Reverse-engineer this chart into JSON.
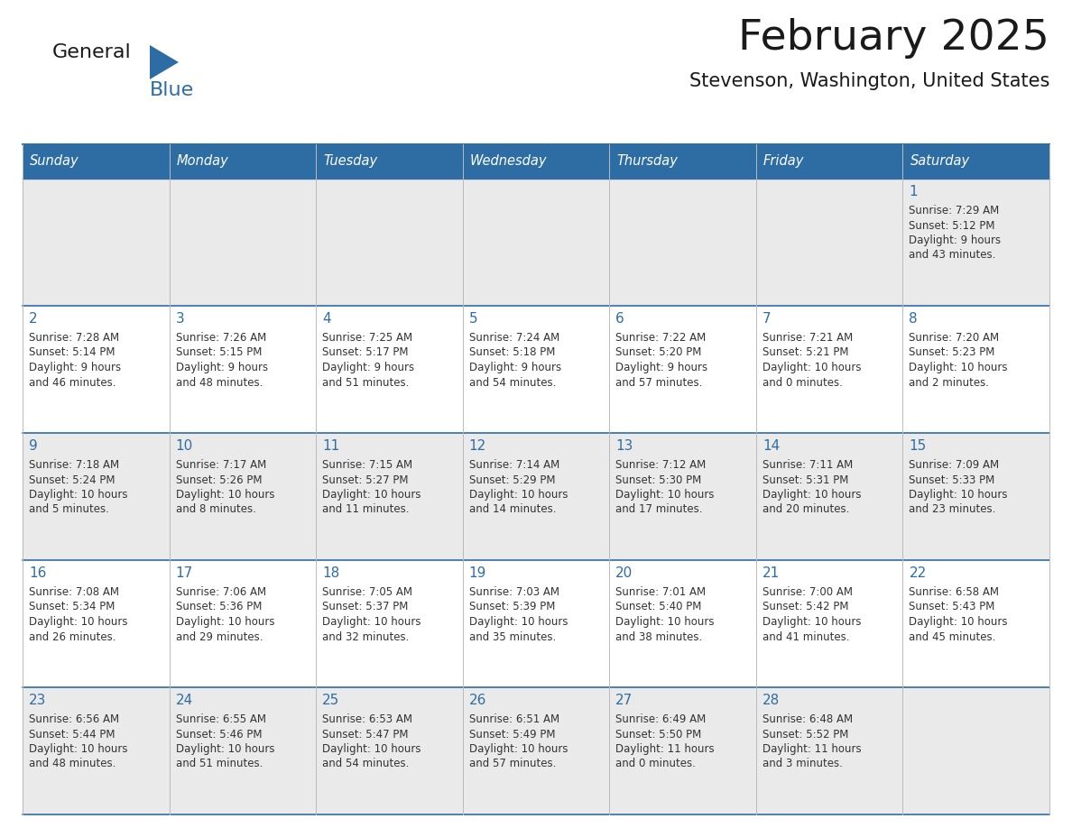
{
  "title": "February 2025",
  "subtitle": "Stevenson, Washington, United States",
  "header_bg": "#2E6DA4",
  "header_text_color": "#FFFFFF",
  "cell_bg_odd": "#EAEAEA",
  "cell_bg_even": "#FFFFFF",
  "border_color_blue": "#2E6DA4",
  "border_color_light": "#BBBBBB",
  "day_number_color": "#2E6DA4",
  "cell_text_color": "#333333",
  "days_of_week": [
    "Sunday",
    "Monday",
    "Tuesday",
    "Wednesday",
    "Thursday",
    "Friday",
    "Saturday"
  ],
  "calendar_data": [
    [
      null,
      null,
      null,
      null,
      null,
      null,
      {
        "day": "1",
        "sunrise": "7:29 AM",
        "sunset": "5:12 PM",
        "daylight1": "9 hours",
        "daylight2": "and 43 minutes."
      }
    ],
    [
      {
        "day": "2",
        "sunrise": "7:28 AM",
        "sunset": "5:14 PM",
        "daylight1": "9 hours",
        "daylight2": "and 46 minutes."
      },
      {
        "day": "3",
        "sunrise": "7:26 AM",
        "sunset": "5:15 PM",
        "daylight1": "9 hours",
        "daylight2": "and 48 minutes."
      },
      {
        "day": "4",
        "sunrise": "7:25 AM",
        "sunset": "5:17 PM",
        "daylight1": "9 hours",
        "daylight2": "and 51 minutes."
      },
      {
        "day": "5",
        "sunrise": "7:24 AM",
        "sunset": "5:18 PM",
        "daylight1": "9 hours",
        "daylight2": "and 54 minutes."
      },
      {
        "day": "6",
        "sunrise": "7:22 AM",
        "sunset": "5:20 PM",
        "daylight1": "9 hours",
        "daylight2": "and 57 minutes."
      },
      {
        "day": "7",
        "sunrise": "7:21 AM",
        "sunset": "5:21 PM",
        "daylight1": "10 hours",
        "daylight2": "and 0 minutes."
      },
      {
        "day": "8",
        "sunrise": "7:20 AM",
        "sunset": "5:23 PM",
        "daylight1": "10 hours",
        "daylight2": "and 2 minutes."
      }
    ],
    [
      {
        "day": "9",
        "sunrise": "7:18 AM",
        "sunset": "5:24 PM",
        "daylight1": "10 hours",
        "daylight2": "and 5 minutes."
      },
      {
        "day": "10",
        "sunrise": "7:17 AM",
        "sunset": "5:26 PM",
        "daylight1": "10 hours",
        "daylight2": "and 8 minutes."
      },
      {
        "day": "11",
        "sunrise": "7:15 AM",
        "sunset": "5:27 PM",
        "daylight1": "10 hours",
        "daylight2": "and 11 minutes."
      },
      {
        "day": "12",
        "sunrise": "7:14 AM",
        "sunset": "5:29 PM",
        "daylight1": "10 hours",
        "daylight2": "and 14 minutes."
      },
      {
        "day": "13",
        "sunrise": "7:12 AM",
        "sunset": "5:30 PM",
        "daylight1": "10 hours",
        "daylight2": "and 17 minutes."
      },
      {
        "day": "14",
        "sunrise": "7:11 AM",
        "sunset": "5:31 PM",
        "daylight1": "10 hours",
        "daylight2": "and 20 minutes."
      },
      {
        "day": "15",
        "sunrise": "7:09 AM",
        "sunset": "5:33 PM",
        "daylight1": "10 hours",
        "daylight2": "and 23 minutes."
      }
    ],
    [
      {
        "day": "16",
        "sunrise": "7:08 AM",
        "sunset": "5:34 PM",
        "daylight1": "10 hours",
        "daylight2": "and 26 minutes."
      },
      {
        "day": "17",
        "sunrise": "7:06 AM",
        "sunset": "5:36 PM",
        "daylight1": "10 hours",
        "daylight2": "and 29 minutes."
      },
      {
        "day": "18",
        "sunrise": "7:05 AM",
        "sunset": "5:37 PM",
        "daylight1": "10 hours",
        "daylight2": "and 32 minutes."
      },
      {
        "day": "19",
        "sunrise": "7:03 AM",
        "sunset": "5:39 PM",
        "daylight1": "10 hours",
        "daylight2": "and 35 minutes."
      },
      {
        "day": "20",
        "sunrise": "7:01 AM",
        "sunset": "5:40 PM",
        "daylight1": "10 hours",
        "daylight2": "and 38 minutes."
      },
      {
        "day": "21",
        "sunrise": "7:00 AM",
        "sunset": "5:42 PM",
        "daylight1": "10 hours",
        "daylight2": "and 41 minutes."
      },
      {
        "day": "22",
        "sunrise": "6:58 AM",
        "sunset": "5:43 PM",
        "daylight1": "10 hours",
        "daylight2": "and 45 minutes."
      }
    ],
    [
      {
        "day": "23",
        "sunrise": "6:56 AM",
        "sunset": "5:44 PM",
        "daylight1": "10 hours",
        "daylight2": "and 48 minutes."
      },
      {
        "day": "24",
        "sunrise": "6:55 AM",
        "sunset": "5:46 PM",
        "daylight1": "10 hours",
        "daylight2": "and 51 minutes."
      },
      {
        "day": "25",
        "sunrise": "6:53 AM",
        "sunset": "5:47 PM",
        "daylight1": "10 hours",
        "daylight2": "and 54 minutes."
      },
      {
        "day": "26",
        "sunrise": "6:51 AM",
        "sunset": "5:49 PM",
        "daylight1": "10 hours",
        "daylight2": "and 57 minutes."
      },
      {
        "day": "27",
        "sunrise": "6:49 AM",
        "sunset": "5:50 PM",
        "daylight1": "11 hours",
        "daylight2": "and 0 minutes."
      },
      {
        "day": "28",
        "sunrise": "6:48 AM",
        "sunset": "5:52 PM",
        "daylight1": "11 hours",
        "daylight2": "and 3 minutes."
      },
      null
    ]
  ],
  "logo_general_color": "#1a1a1a",
  "logo_blue_color": "#2E6DA4",
  "fig_width": 11.88,
  "fig_height": 9.18,
  "dpi": 100
}
